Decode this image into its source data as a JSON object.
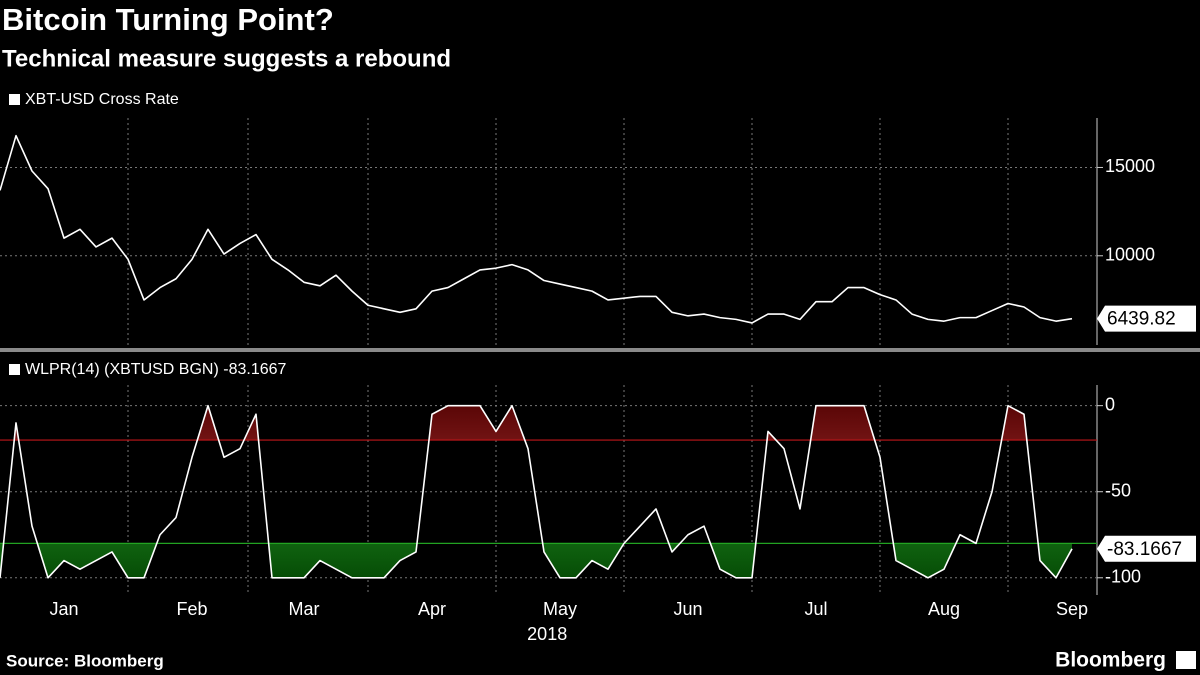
{
  "title": "Bitcoin Turning Point?",
  "subtitle": "Technical measure suggests a rebound",
  "source": "Source: Bloomberg",
  "logo": "Bloomberg",
  "chart_data": [
    {
      "type": "line",
      "series": [
        {
          "name": "XBT-USD Cross Rate",
          "color": "#ffffff",
          "values": [
            13700,
            16800,
            14800,
            13800,
            11000,
            11500,
            10500,
            11000,
            9800,
            7500,
            8200,
            8700,
            9800,
            11500,
            10100,
            10700,
            11200,
            9800,
            9200,
            8500,
            8300,
            8900,
            8000,
            7200,
            7000,
            6800,
            7000,
            8000,
            8200,
            8700,
            9200,
            9300,
            9500,
            9200,
            8600,
            8400,
            8200,
            8000,
            7500,
            7600,
            7700,
            7700,
            6800,
            6600,
            6700,
            6500,
            6400,
            6200,
            6700,
            6700,
            6400,
            7400,
            7400,
            8200,
            8200,
            7800,
            7500,
            6700,
            6400,
            6300,
            6500,
            6500,
            6900,
            7300,
            7100,
            6500,
            6300,
            6439.82
          ]
        }
      ],
      "ylim": [
        4950,
        17800
      ],
      "yticks": [
        10000,
        15000
      ],
      "grid": true
    },
    {
      "type": "oscillator",
      "categories": [
        null,
        null,
        null,
        null,
        "Jan",
        null,
        null,
        null,
        null,
        null,
        null,
        null,
        "Feb",
        null,
        null,
        null,
        null,
        null,
        null,
        "Mar",
        null,
        null,
        null,
        null,
        null,
        null,
        null,
        "Apr",
        null,
        null,
        null,
        null,
        null,
        null,
        null,
        "May",
        null,
        null,
        null,
        null,
        null,
        null,
        null,
        "Jun",
        null,
        null,
        null,
        null,
        null,
        null,
        null,
        "Jul",
        null,
        null,
        null,
        null,
        null,
        null,
        null,
        "Aug",
        null,
        null,
        null,
        null,
        null,
        null,
        null,
        "Sep"
      ],
      "x_label": "2018",
      "series": [
        {
          "name": "WLPR(14) (XBTUSD BGN) -83.1667",
          "color": "#ffffff",
          "values": [
            -100,
            -10,
            -70,
            -100,
            -90,
            -95,
            -90,
            -85,
            -100,
            -100,
            -75,
            -65,
            -30,
            0,
            -30,
            -25,
            -5,
            -100,
            -100,
            -100,
            -90,
            -95,
            -100,
            -100,
            -100,
            -90,
            -85,
            -5,
            0,
            0,
            0,
            -15,
            0,
            -25,
            -85,
            -100,
            -100,
            -90,
            -95,
            -80,
            -70,
            -60,
            -85,
            -75,
            -70,
            -95,
            -100,
            -100,
            -15,
            -25,
            -60,
            0,
            0,
            0,
            0,
            -30,
            -90,
            -95,
            -100,
            -95,
            -75,
            -80,
            -50,
            0,
            -5,
            -90,
            -100,
            -83.1667
          ]
        }
      ],
      "bands": [
        {
          "value": -20,
          "color": "#c0161a",
          "fill": "#9a1010"
        },
        {
          "value": -80,
          "color": "#22a322",
          "fill": "#0d7a0d"
        }
      ],
      "ylim": [
        -110,
        12
      ],
      "yticks": [
        -100,
        -50,
        0
      ],
      "grid": true
    }
  ]
}
